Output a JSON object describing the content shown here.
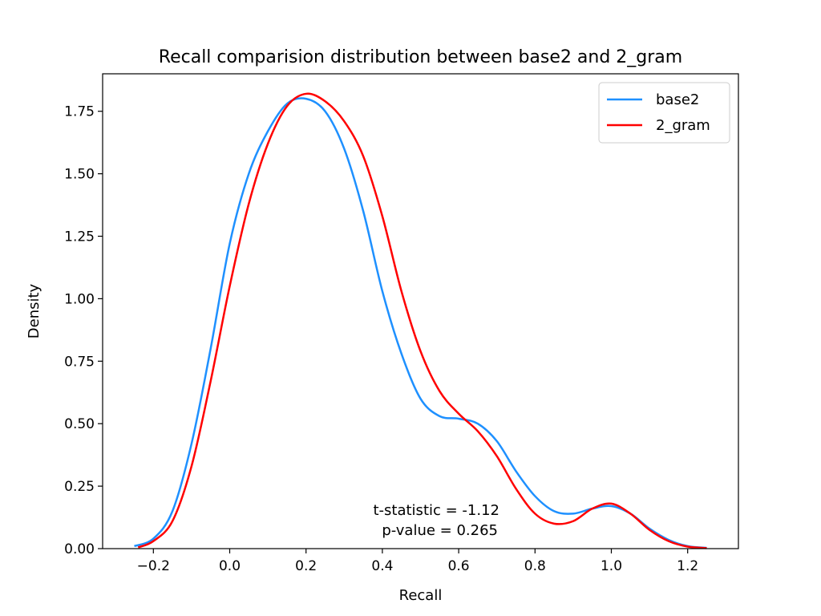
{
  "chart_data": {
    "type": "line",
    "title": "Recall comparision distribution between base2 and 2_gram",
    "xlabel": "Recall",
    "ylabel": "Density",
    "xlim": [
      -0.333,
      1.333
    ],
    "ylim": [
      0,
      1.9
    ],
    "x_ticks": [
      -0.2,
      0.0,
      0.2,
      0.4,
      0.6,
      0.8,
      1.0,
      1.2
    ],
    "x_tick_labels": [
      "−0.2",
      "0.0",
      "0.2",
      "0.4",
      "0.6",
      "0.8",
      "1.0",
      "1.2"
    ],
    "y_ticks": [
      0,
      0.25,
      0.5,
      0.75,
      1.0,
      1.25,
      1.5,
      1.75
    ],
    "y_tick_labels": [
      "0.00",
      "0.25",
      "0.50",
      "0.75",
      "1.00",
      "1.25",
      "1.50",
      "1.75"
    ],
    "grid": false,
    "legend_position": "top-right",
    "series": [
      {
        "name": "base2",
        "color": "#1e90ff",
        "x": [
          -0.25,
          -0.2,
          -0.15,
          -0.1,
          -0.05,
          0.0,
          0.05,
          0.1,
          0.15,
          0.2,
          0.25,
          0.3,
          0.35,
          0.4,
          0.45,
          0.5,
          0.55,
          0.6,
          0.65,
          0.7,
          0.75,
          0.8,
          0.85,
          0.9,
          0.95,
          1.0,
          1.05,
          1.1,
          1.15,
          1.2,
          1.25
        ],
        "y": [
          0.01,
          0.04,
          0.15,
          0.42,
          0.8,
          1.22,
          1.5,
          1.67,
          1.78,
          1.8,
          1.75,
          1.6,
          1.35,
          1.03,
          0.78,
          0.6,
          0.53,
          0.52,
          0.5,
          0.43,
          0.31,
          0.21,
          0.15,
          0.14,
          0.16,
          0.17,
          0.14,
          0.08,
          0.035,
          0.01,
          0.003
        ]
      },
      {
        "name": "2_gram",
        "color": "#ff0000",
        "x": [
          -0.24,
          -0.2,
          -0.15,
          -0.1,
          -0.05,
          0.0,
          0.05,
          0.1,
          0.15,
          0.2,
          0.25,
          0.3,
          0.35,
          0.4,
          0.45,
          0.5,
          0.55,
          0.6,
          0.65,
          0.7,
          0.75,
          0.8,
          0.85,
          0.9,
          0.95,
          1.0,
          1.05,
          1.1,
          1.15,
          1.2,
          1.25
        ],
        "y": [
          0.005,
          0.03,
          0.11,
          0.33,
          0.67,
          1.05,
          1.38,
          1.62,
          1.77,
          1.82,
          1.79,
          1.71,
          1.57,
          1.33,
          1.03,
          0.79,
          0.63,
          0.54,
          0.47,
          0.37,
          0.24,
          0.14,
          0.1,
          0.11,
          0.16,
          0.18,
          0.14,
          0.075,
          0.03,
          0.008,
          0.002
        ]
      }
    ],
    "annotations": [
      "t-statistic = -1.12",
      "p-value = 0.265"
    ]
  }
}
